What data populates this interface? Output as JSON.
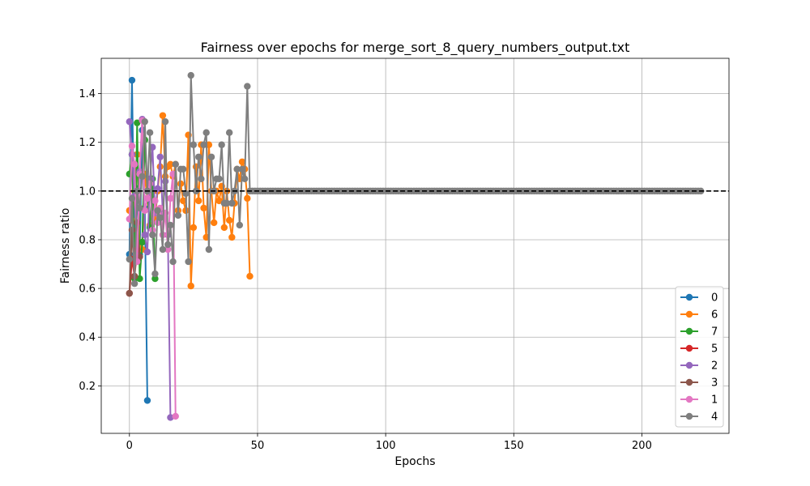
{
  "chart_data": {
    "type": "line",
    "title": "Fairness over epochs for merge_sort_8_query_numbers_output.txt",
    "xlabel": "Epochs",
    "ylabel": "Fairness ratio",
    "xlim": [
      -11,
      234
    ],
    "ylim": [
      0.005,
      1.545
    ],
    "x_ticks": [
      0,
      50,
      100,
      150,
      200
    ],
    "y_ticks": [
      0.2,
      0.4,
      0.6,
      0.8,
      1.0,
      1.2,
      1.4
    ],
    "grid": true,
    "legend_position": "lower-right",
    "reference_line": {
      "y": 1.0,
      "style": "dashed",
      "color": "#000000"
    },
    "series": [
      {
        "name": "0",
        "color": "#1f77b4",
        "x": [
          0,
          1,
          2,
          3,
          4,
          5,
          6,
          7
        ],
        "y": [
          0.74,
          1.455,
          0.72,
          1.01,
          0.74,
          1.25,
          0.93,
          0.14
        ]
      },
      {
        "name": "6",
        "color": "#ff7f0e",
        "x": [
          0,
          1,
          2,
          3,
          4,
          5,
          6,
          7,
          8,
          9,
          10,
          11,
          12,
          13,
          14,
          15,
          16,
          17,
          18,
          19,
          20,
          21,
          22,
          23,
          24,
          25,
          26,
          27,
          28,
          29,
          30,
          31,
          32,
          33,
          34,
          35,
          36,
          37,
          38,
          39,
          40,
          41,
          42,
          43,
          44,
          45,
          46,
          47
        ],
        "y": [
          0.92,
          0.88,
          1.0,
          1.15,
          0.78,
          0.76,
          1.07,
          0.97,
          0.86,
          1.0,
          0.88,
          1.0,
          1.1,
          1.31,
          1.06,
          1.1,
          1.11,
          1.06,
          1.11,
          0.92,
          1.03,
          0.96,
          0.92,
          1.23,
          0.61,
          0.85,
          1.1,
          0.96,
          1.19,
          0.93,
          0.81,
          1.19,
          1.0,
          0.87,
          1.0,
          0.96,
          1.02,
          0.85,
          1.0,
          0.88,
          0.81,
          0.95,
          1.09,
          1.05,
          1.12,
          1.09,
          0.97,
          0.65
        ]
      },
      {
        "name": "7",
        "color": "#2ca02c",
        "x": [
          0,
          1,
          2,
          3,
          4,
          5,
          6,
          7,
          8,
          9,
          10
        ],
        "y": [
          1.07,
          1.15,
          0.64,
          1.28,
          0.64,
          0.79,
          1.21,
          1.0,
          0.85,
          1.05,
          0.64
        ]
      },
      {
        "name": "5",
        "color": "#d62728",
        "x": [
          0,
          1,
          2,
          3
        ],
        "y": [
          0.58,
          0.72,
          0.65,
          0.76
        ]
      },
      {
        "name": "2",
        "color": "#9467bd",
        "x": [
          0,
          1,
          2,
          3,
          4,
          5,
          6,
          7,
          8,
          9,
          10,
          11,
          12,
          13,
          14,
          15,
          16
        ],
        "y": [
          1.285,
          1.15,
          0.98,
          0.73,
          1.08,
          1.295,
          0.82,
          0.75,
          1.05,
          1.18,
          0.91,
          1.01,
          1.14,
          0.91,
          1.04,
          0.82,
          0.07
        ]
      },
      {
        "name": "3",
        "color": "#8c564b",
        "x": [
          0,
          1,
          2,
          3,
          4
        ],
        "y": [
          0.58,
          0.84,
          0.65,
          0.87,
          0.73
        ]
      },
      {
        "name": "1",
        "color": "#e377c2",
        "x": [
          0,
          1,
          2,
          3,
          4,
          5,
          6,
          7,
          8,
          9,
          10,
          11,
          12,
          13,
          14,
          15,
          16,
          17,
          18
        ],
        "y": [
          0.885,
          1.185,
          1.11,
          0.71,
          1.07,
          1.29,
          0.92,
          0.97,
          1.03,
          0.84,
          0.96,
          0.87,
          0.93,
          0.82,
          0.91,
          0.76,
          0.97,
          1.07,
          0.075
        ]
      },
      {
        "name": "4",
        "color": "#7f7f7f",
        "x": [
          0,
          1,
          2,
          3,
          4,
          5,
          6,
          7,
          8,
          9,
          10,
          11,
          12,
          13,
          14,
          15,
          16,
          17,
          18,
          19,
          20,
          21,
          22,
          23,
          24,
          25,
          26,
          27,
          28,
          29,
          30,
          31,
          32,
          33,
          34,
          35,
          36,
          37,
          38,
          39,
          40,
          41,
          42,
          43,
          44,
          45,
          46,
          47,
          48
        ],
        "y": [
          0.72,
          0.97,
          0.62,
          1.0,
          0.93,
          1.06,
          1.285,
          1.0,
          1.24,
          0.82,
          0.66,
          0.92,
          0.89,
          0.76,
          1.285,
          0.78,
          0.86,
          0.71,
          1.11,
          0.9,
          1.09,
          1.09,
          0.99,
          0.71,
          1.475,
          1.19,
          1.0,
          1.14,
          1.05,
          1.19,
          1.24,
          0.76,
          1.14,
          1.0,
          1.05,
          1.05,
          1.19,
          0.95,
          0.95,
          1.24,
          0.95,
          1.0,
          1.09,
          0.86,
          1.09,
          1.05,
          1.43,
          1.0,
          1.0
        ],
        "tail": {
          "from": 48,
          "to": 223,
          "value": 1.0
        }
      }
    ]
  }
}
